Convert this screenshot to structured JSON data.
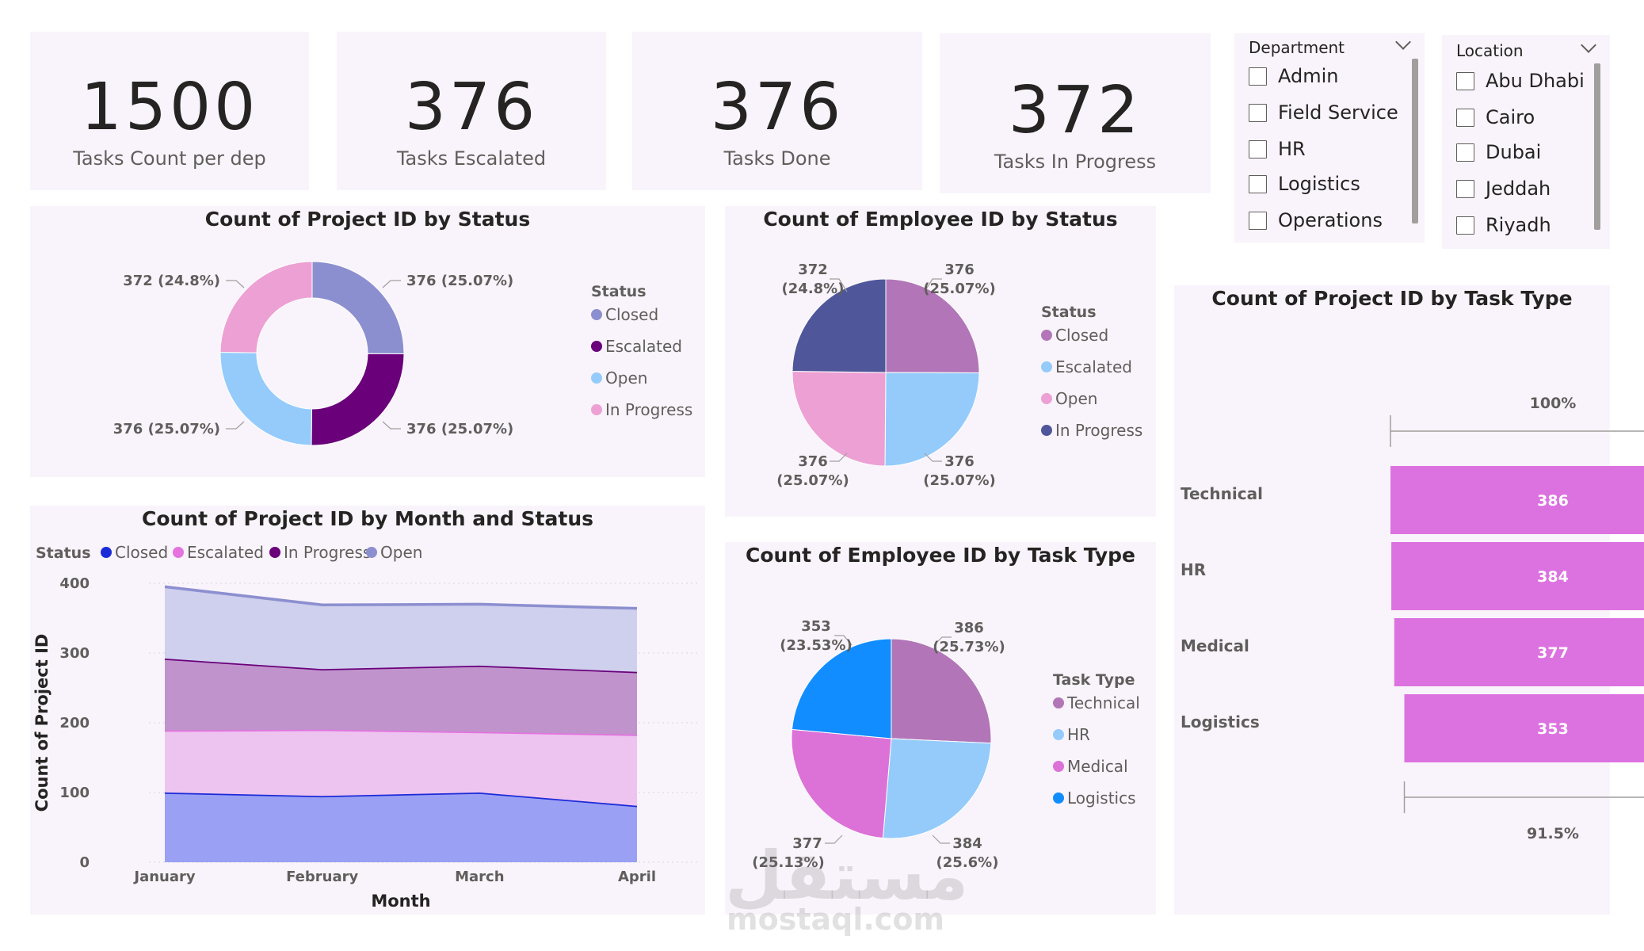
{
  "kpis": [
    {
      "value": "1500",
      "label": "Tasks Count per dep"
    },
    {
      "value": "376",
      "label": "Tasks Escalated"
    },
    {
      "value": "376",
      "label": "Tasks Done"
    },
    {
      "value": "372",
      "label": "Tasks In Progress"
    }
  ],
  "slicers": {
    "department": {
      "title": "Department",
      "items": [
        "Admin",
        "Field Service",
        "HR",
        "Logistics",
        "Operations"
      ]
    },
    "location": {
      "title": "Location",
      "items": [
        "Abu Dhabi",
        "Cairo",
        "Dubai",
        "Jeddah",
        "Riyadh"
      ]
    }
  },
  "watermark": {
    "arabic": "مستقل",
    "latin": "mostaql.com"
  },
  "chart_data": [
    {
      "id": "donut",
      "type": "pie",
      "style": "donut",
      "title": "Count of Project ID by Status",
      "legend_title": "Status",
      "legend_position": "right",
      "slices": [
        {
          "label": "Closed",
          "value": 376,
          "data_label": "376 (25.07%)",
          "color": "#8c8fcf"
        },
        {
          "label": "Escalated",
          "value": 376,
          "data_label": "376 (25.07%)",
          "color": "#6a007a"
        },
        {
          "label": "Open",
          "value": 376,
          "data_label": "376 (25.07%)",
          "color": "#94cbfb"
        },
        {
          "label": "In Progress",
          "value": 372,
          "data_label": "372 (24.8%)",
          "color": "#eda0d4"
        }
      ]
    },
    {
      "id": "pie_emp_status",
      "type": "pie",
      "title": "Count of Employee ID by Status",
      "legend_title": "Status",
      "legend_position": "right",
      "slices": [
        {
          "label": "Closed",
          "value": 376,
          "label_value": "376",
          "label_pct": "(25.07%)",
          "color": "#b276b8"
        },
        {
          "label": "Escalated",
          "value": 376,
          "label_value": "376",
          "label_pct": "(25.07%)",
          "color": "#94cbfb"
        },
        {
          "label": "Open",
          "value": 376,
          "label_value": "376",
          "label_pct": "(25.07%)",
          "color": "#eda0d4"
        },
        {
          "label": "In Progress",
          "value": 372,
          "label_value": "372",
          "label_pct": "(24.8%)",
          "color": "#4f579a"
        }
      ]
    },
    {
      "id": "pie_emp_task",
      "type": "pie",
      "title": "Count of Employee ID by Task Type",
      "legend_title": "Task Type",
      "legend_position": "right",
      "slices": [
        {
          "label": "Technical",
          "value": 386,
          "label_value": "386",
          "label_pct": "(25.73%)",
          "color": "#b276b8"
        },
        {
          "label": "HR",
          "value": 384,
          "label_value": "384",
          "label_pct": "(25.6%)",
          "color": "#94cbfb"
        },
        {
          "label": "Medical",
          "value": 377,
          "label_value": "377",
          "label_pct": "(25.13%)",
          "color": "#dc72d8"
        },
        {
          "label": "Logistics",
          "value": 353,
          "label_value": "353",
          "label_pct": "(23.53%)",
          "color": "#118dff"
        }
      ]
    },
    {
      "id": "area",
      "type": "area",
      "stacked": true,
      "title": "Count of Project ID by Month and Status",
      "xlabel": "Month",
      "ylabel": "Count of Project ID",
      "legend_title": "Status",
      "legend_position": "top-left",
      "categories": [
        "January",
        "February",
        "March",
        "April"
      ],
      "ylim": [
        0,
        400
      ],
      "yticks": [
        0,
        100,
        200,
        300,
        400
      ],
      "grid": true,
      "series": [
        {
          "name": "Closed",
          "values": [
            100,
            95,
            100,
            81
          ],
          "color": "#1b2bd8",
          "fill": "#9aa0f4"
        },
        {
          "name": "Escalated",
          "values": [
            89,
            95,
            87,
            102
          ],
          "color": "#e472df",
          "fill": "#edc3ef"
        },
        {
          "name": "In Progress",
          "values": [
            103,
            87,
            95,
            90
          ],
          "color": "#6a007a",
          "fill": "#c093cc"
        },
        {
          "name": "Open",
          "values": [
            103,
            92,
            88,
            91
          ],
          "color": "#8c8fcf",
          "fill": "#cfcfee"
        }
      ]
    },
    {
      "id": "funnel",
      "type": "bar",
      "style": "funnel",
      "title": "Count of Project ID by Task Type",
      "categories": [
        "Technical",
        "HR",
        "Medical",
        "Logistics"
      ],
      "values": [
        386,
        384,
        377,
        353
      ],
      "top_label": "100%",
      "bottom_label": "91.5%",
      "color": "#dc72e0"
    }
  ]
}
